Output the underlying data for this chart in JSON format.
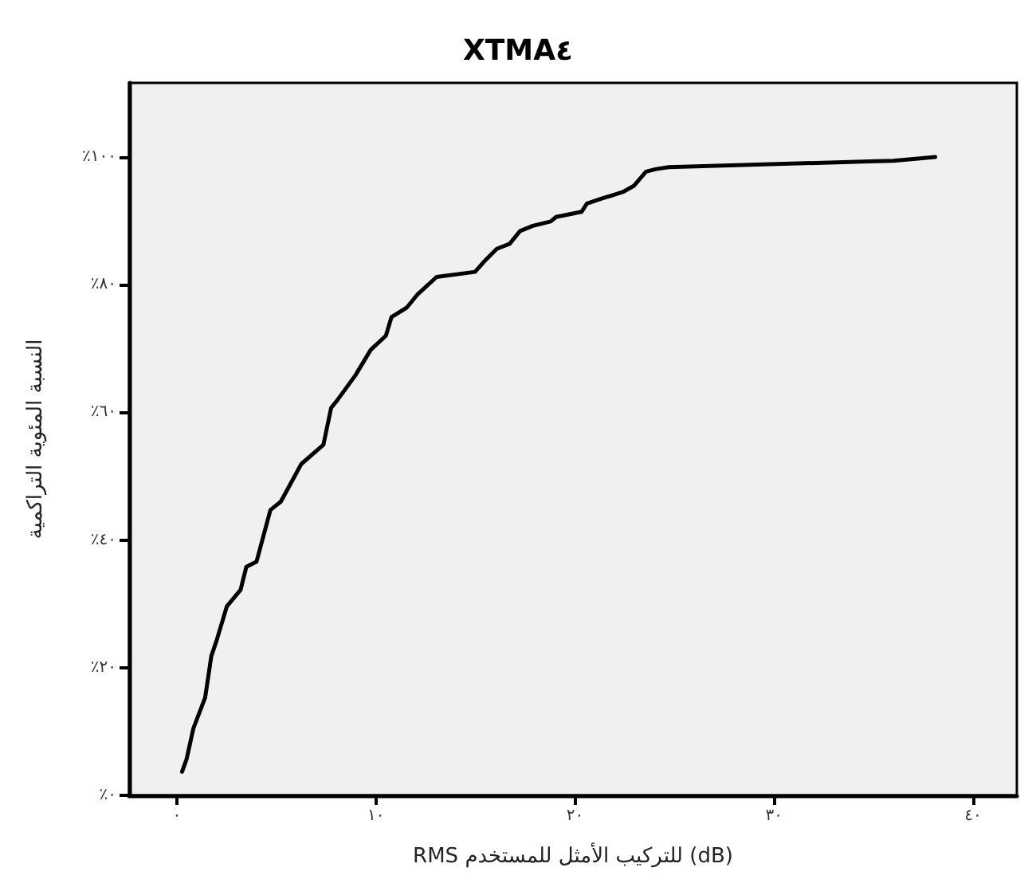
{
  "chart_data": {
    "type": "line",
    "title": "XTMA٤",
    "xlabel": "RMS للتركيب الأمثل للمستخدم (dB)",
    "ylabel": "النسبة المئوية التراكمية",
    "xlim": [
      -2.4,
      42.2
    ],
    "ylim": [
      0,
      111.6
    ],
    "xticks": [
      {
        "value": 0,
        "label": "٠"
      },
      {
        "value": 10,
        "label": "١٠"
      },
      {
        "value": 20,
        "label": "٢٠"
      },
      {
        "value": 30,
        "label": "٣٠"
      },
      {
        "value": 40,
        "label": "٤٠"
      }
    ],
    "yticks": [
      {
        "value": 0,
        "label": "٪٠"
      },
      {
        "value": 20,
        "label": "٪٢٠"
      },
      {
        "value": 40,
        "label": "٪٤٠"
      },
      {
        "value": 60,
        "label": "٪٦٠"
      },
      {
        "value": 80,
        "label": "٪٨٠"
      },
      {
        "value": 100,
        "label": "٪١٠٠"
      }
    ],
    "grid": false,
    "marker": "none",
    "line_style": "solid",
    "x": [
      0.26,
      0.49,
      0.83,
      1.42,
      1.73,
      1.99,
      2.51,
      3.2,
      3.49,
      4.0,
      4.7,
      5.22,
      6.25,
      7.36,
      7.75,
      8.06,
      8.97,
      9.74,
      10.5,
      10.78,
      11.55,
      12.07,
      13.05,
      14.98,
      15.43,
      16.07,
      16.72,
      17.24,
      17.88,
      18.78,
      19.05,
      20.33,
      20.6,
      21.37,
      22.4,
      22.97,
      23.57,
      24.08,
      24.7,
      34.8,
      36.0,
      38.1
    ],
    "series": [
      {
        "color": "#000000",
        "values": [
          3.7,
          5.7,
          10.5,
          15.3,
          21.8,
          24.2,
          29.6,
          32.2,
          35.8,
          36.6,
          44.7,
          46.0,
          51.9,
          54.9,
          60.7,
          61.9,
          65.8,
          69.8,
          72.0,
          74.9,
          76.4,
          78.4,
          81.2,
          82.0,
          83.6,
          85.6,
          86.4,
          88.4,
          89.2,
          89.9,
          90.6,
          91.4,
          92.7,
          93.5,
          94.5,
          95.5,
          97.7,
          98.1,
          98.4,
          99.3,
          99.4,
          100
        ]
      }
    ]
  }
}
